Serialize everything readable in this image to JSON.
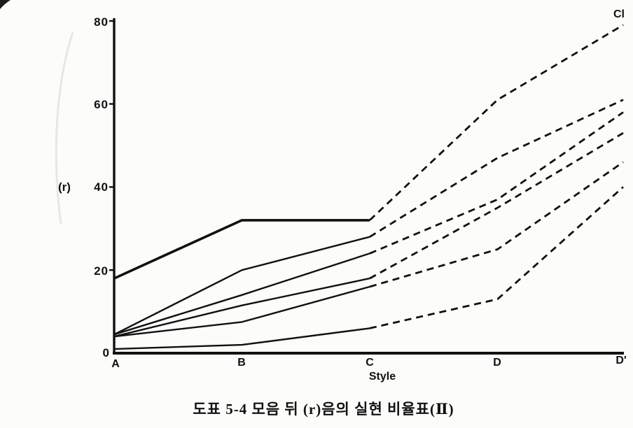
{
  "figure": {
    "caption": "도표 5-4  모음 뒤 (r)음의 실현 비율표(Ⅱ)",
    "corner_label": "Cl"
  },
  "chart_data": {
    "type": "line",
    "title": "",
    "xlabel": "Style",
    "ylabel": "(r)",
    "categories": [
      "A",
      "B",
      "C",
      "D",
      "D'"
    ],
    "yticks": [
      "0",
      "20",
      "40",
      "60",
      "80"
    ],
    "ylim": [
      0,
      80
    ],
    "grid": false,
    "legend": "none",
    "line_color": "#111111",
    "style_note": "solid segments from A to C, dashed segments from C to D'",
    "annotation_top_right": "Cl",
    "series": [
      {
        "name": "line-1",
        "values": [
          18,
          32,
          32,
          61,
          79
        ]
      },
      {
        "name": "line-2",
        "values": [
          4.5,
          20,
          28,
          47,
          61
        ]
      },
      {
        "name": "line-3",
        "values": [
          4.5,
          14,
          24,
          37,
          58
        ]
      },
      {
        "name": "line-4",
        "values": [
          4,
          11.5,
          18,
          35,
          53
        ]
      },
      {
        "name": "line-5",
        "values": [
          4,
          7.5,
          16,
          25,
          46
        ]
      },
      {
        "name": "line-6",
        "values": [
          1,
          2,
          6,
          13,
          40
        ]
      }
    ]
  }
}
